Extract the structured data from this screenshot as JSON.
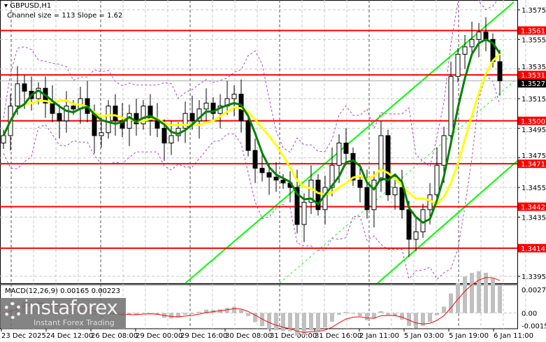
{
  "header": {
    "symbol": "GBPUSD,H1",
    "indicator": "Channel size = 113 Slope = 1.62"
  },
  "macd_label": "MACD(12,26,9) 0.00165 0.00223",
  "logo": {
    "name": "instaforex",
    "tagline": "Instant Forex Trading"
  },
  "colors": {
    "level": "#ff0000",
    "ma_fast": "#008000",
    "ma_slow": "#ffff00",
    "channel": "#00ff00",
    "bands": "#b040d0",
    "current": "#000000"
  },
  "chart_data": {
    "type": "candlestick",
    "symbol": "GBPUSD",
    "timeframe": "H1",
    "ylim": [
      1.3385,
      1.3582
    ],
    "y_ticks": [
      "1.3575",
      "1.3555",
      "1.3535",
      "1.3515",
      "1.3495",
      "1.3475",
      "1.3455",
      "1.3435",
      "1.3395"
    ],
    "x_ticks": [
      "23 Dec 2025",
      "24 Dec 12:00",
      "26 Dec 08:00",
      "29 Dec 00:00",
      "29 Dec 16:00",
      "30 Dec 08:00",
      "31 Dec 00:00",
      "31 Dec 16:00",
      "2 Jan 11:00",
      "5 Jan 03:00",
      "5 Jan 19:00",
      "6 Jan 11:00"
    ],
    "levels": [
      "1.3561",
      "1.3531",
      "1.3500",
      "1.3471",
      "1.3442",
      "1.3414"
    ],
    "current_price": "1.3527",
    "closes": [
      1.349,
      1.351,
      1.3525,
      1.352,
      1.3515,
      1.3522,
      1.3512,
      1.3505,
      1.35,
      1.351,
      1.3508,
      1.3515,
      1.3505,
      1.349,
      1.3492,
      1.351,
      1.35,
      1.3495,
      1.3505,
      1.3498,
      1.351,
      1.35,
      1.3495,
      1.3485,
      1.349,
      1.3495,
      1.3505,
      1.35,
      1.3508,
      1.3512,
      1.3505,
      1.351,
      1.3515,
      1.3518,
      1.35,
      1.348,
      1.3468,
      1.3465,
      1.3462,
      1.346,
      1.3458,
      1.3455,
      1.343,
      1.3445,
      1.346,
      1.344,
      1.3455,
      1.347,
      1.3485,
      1.3478,
      1.346,
      1.3455,
      1.344,
      1.346,
      1.349,
      1.345,
      1.3455,
      1.344,
      1.342,
      1.3425,
      1.344,
      1.345,
      1.347,
      1.349,
      1.353,
      1.3545,
      1.355,
      1.3555,
      1.356,
      1.3555,
      1.354,
      1.3527
    ],
    "macd": {
      "ticks": [
        "0.00279",
        "0.00",
        "-0.0015"
      ],
      "main": 0.00165,
      "signal": 0.00223,
      "ylim": [
        -0.0017,
        0.0032
      ]
    }
  }
}
